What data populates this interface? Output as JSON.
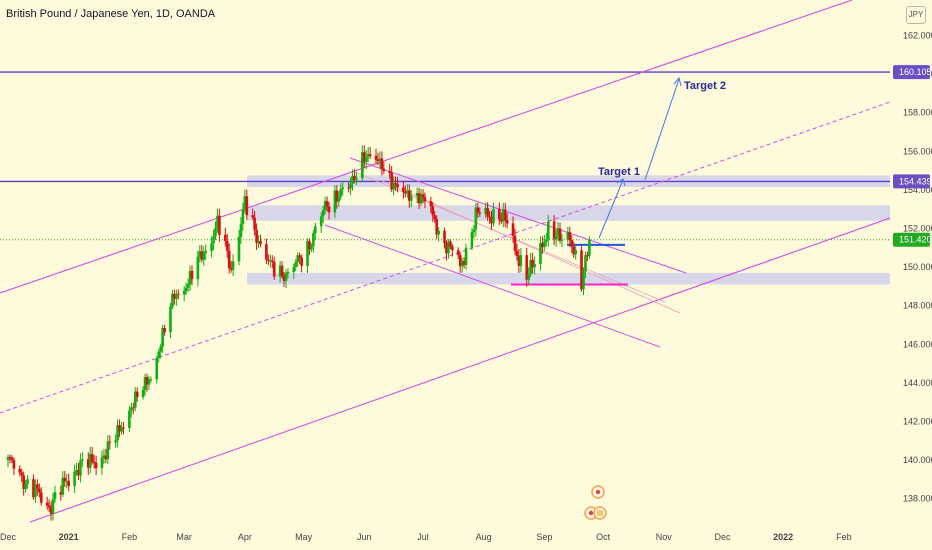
{
  "symbol_title": "British Pound / Japanese Yen, 1D, OANDA",
  "currency_badge": "JPY",
  "colors": {
    "background": "#fdfbdc",
    "up_candle": "#10b010",
    "down_candle": "#d81010",
    "resistance_line": "#5a3fc4",
    "channel": "#d94ce0",
    "zone_fill": "#c9c7ef",
    "support_line": "#ff22cc",
    "pivot_line": "#2156d8",
    "arrow": "#4a74e8",
    "price_label_bg": "#22aa22"
  },
  "chart_data": {
    "type": "candlestick",
    "title": "British Pound / Japanese Yen, 1D, OANDA",
    "xlabel": "",
    "ylabel": "",
    "ylim": [
      136.5,
      164.0
    ],
    "y_ticks": [
      138,
      140,
      142,
      144,
      146,
      148,
      150,
      152,
      154,
      156,
      158,
      160,
      162
    ],
    "y_tick_labels": [
      "138.000",
      "140.000",
      "142.000",
      "144.000",
      "146.000",
      "148.000",
      "150.000",
      "152.000",
      "154.000",
      "156.000",
      "158.000",
      "160.000",
      "162.000"
    ],
    "x_ticks": [
      {
        "label": "Dec",
        "date": "2020-12-01"
      },
      {
        "label": "2021",
        "date": "2021-01-01"
      },
      {
        "label": "Feb",
        "date": "2021-02-01"
      },
      {
        "label": "Mar",
        "date": "2021-03-01"
      },
      {
        "label": "Apr",
        "date": "2021-04-01"
      },
      {
        "label": "May",
        "date": "2021-05-01"
      },
      {
        "label": "Jun",
        "date": "2021-06-01"
      },
      {
        "label": "Jul",
        "date": "2021-07-01"
      },
      {
        "label": "Aug",
        "date": "2021-08-01"
      },
      {
        "label": "Sep",
        "date": "2021-09-01"
      },
      {
        "label": "Oct",
        "date": "2021-10-01"
      },
      {
        "label": "Nov",
        "date": "2021-11-01"
      },
      {
        "label": "Dec",
        "date": "2021-12-01"
      },
      {
        "label": "2022",
        "date": "2022-01-01"
      },
      {
        "label": "Feb",
        "date": "2022-02-01"
      }
    ],
    "anchors": [
      {
        "date": "2020-12-01",
        "close": 140.0
      },
      {
        "date": "2020-12-10",
        "close": 138.9
      },
      {
        "date": "2020-12-22",
        "close": 137.6
      },
      {
        "date": "2021-01-04",
        "close": 139.5
      },
      {
        "date": "2021-01-20",
        "close": 140.3
      },
      {
        "date": "2021-02-01",
        "close": 142.6
      },
      {
        "date": "2021-02-12",
        "close": 144.4
      },
      {
        "date": "2021-02-24",
        "close": 148.5
      },
      {
        "date": "2021-03-04",
        "close": 149.4
      },
      {
        "date": "2021-03-18",
        "close": 152.2
      },
      {
        "date": "2021-03-25",
        "close": 150.0
      },
      {
        "date": "2021-04-01",
        "close": 153.2
      },
      {
        "date": "2021-04-14",
        "close": 150.0
      },
      {
        "date": "2021-04-23",
        "close": 149.6
      },
      {
        "date": "2021-05-05",
        "close": 151.3
      },
      {
        "date": "2021-05-12",
        "close": 153.2
      },
      {
        "date": "2021-05-24",
        "close": 154.1
      },
      {
        "date": "2021-06-01",
        "close": 155.8
      },
      {
        "date": "2021-06-10",
        "close": 155.3
      },
      {
        "date": "2021-06-21",
        "close": 153.6
      },
      {
        "date": "2021-06-29",
        "close": 153.9
      },
      {
        "date": "2021-07-08",
        "close": 152.1
      },
      {
        "date": "2021-07-20",
        "close": 150.0
      },
      {
        "date": "2021-07-28",
        "close": 152.6
      },
      {
        "date": "2021-08-06",
        "close": 152.8
      },
      {
        "date": "2021-08-13",
        "close": 152.3
      },
      {
        "date": "2021-08-19",
        "close": 150.4
      },
      {
        "date": "2021-08-23",
        "close": 149.5
      },
      {
        "date": "2021-09-03",
        "close": 151.8
      },
      {
        "date": "2021-09-14",
        "close": 151.5
      },
      {
        "date": "2021-09-20",
        "close": 149.2
      },
      {
        "date": "2021-09-24",
        "close": 151.4
      }
    ],
    "last_price": 151.42,
    "levels": [
      {
        "name": "Target 2 resistance",
        "price": 160.105
      },
      {
        "name": "Target 1 resistance",
        "price": 154.439
      },
      {
        "name": "Support",
        "price": 149.1
      }
    ],
    "zones": [
      {
        "from": 154.15,
        "to": 154.75
      },
      {
        "from": 152.4,
        "to": 153.2
      },
      {
        "from": 149.1,
        "to": 149.7
      }
    ],
    "annotations": [
      "Target 1",
      "Target 2"
    ]
  },
  "price_labels": {
    "level_high": "160.105",
    "level_mid": "154.439",
    "last": "151.420"
  },
  "annotations": {
    "target1": "Target 1",
    "target2": "Target 2"
  }
}
